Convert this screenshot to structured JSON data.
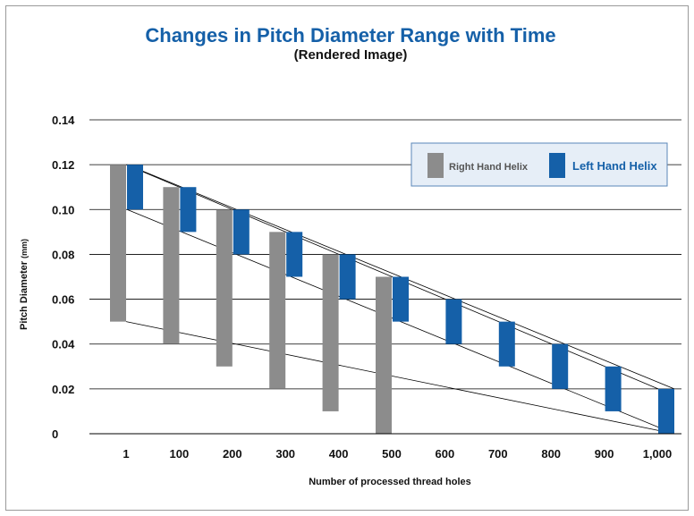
{
  "chart_data": {
    "type": "bar",
    "title": "Changes in Pitch Diameter Range with Time",
    "subtitle": "(Rendered Image)",
    "xlabel": "Number of processed thread holes",
    "ylabel": "Pitch Diameter",
    "ylabel_unit": "(mm)",
    "categories": [
      "1",
      "100",
      "200",
      "300",
      "400",
      "500",
      "600",
      "700",
      "800",
      "900",
      "1,000"
    ],
    "ylim": [
      0,
      0.14
    ],
    "yticks": [
      "0",
      "0.02",
      "0.04",
      "0.06",
      "0.08",
      "0.10",
      "0.12",
      "0.14"
    ],
    "grid": true,
    "legend_position": "top-right",
    "series": [
      {
        "name": "Right Hand Helix",
        "color": "#8c8c8c",
        "ranges": [
          [
            0.05,
            0.12
          ],
          [
            0.04,
            0.11
          ],
          [
            0.03,
            0.1
          ],
          [
            0.02,
            0.09
          ],
          [
            0.01,
            0.08
          ],
          [
            0.0,
            0.07
          ],
          null,
          null,
          null,
          null,
          null
        ]
      },
      {
        "name": "Left Hand Helix",
        "color": "#1560a8",
        "ranges": [
          [
            0.1,
            0.12
          ],
          [
            0.09,
            0.11
          ],
          [
            0.08,
            0.1
          ],
          [
            0.07,
            0.09
          ],
          [
            0.06,
            0.08
          ],
          [
            0.05,
            0.07
          ],
          [
            0.04,
            0.06
          ],
          [
            0.03,
            0.05
          ],
          [
            0.02,
            0.04
          ],
          [
            0.01,
            0.03
          ],
          [
            0.0,
            0.02
          ]
        ]
      }
    ]
  }
}
